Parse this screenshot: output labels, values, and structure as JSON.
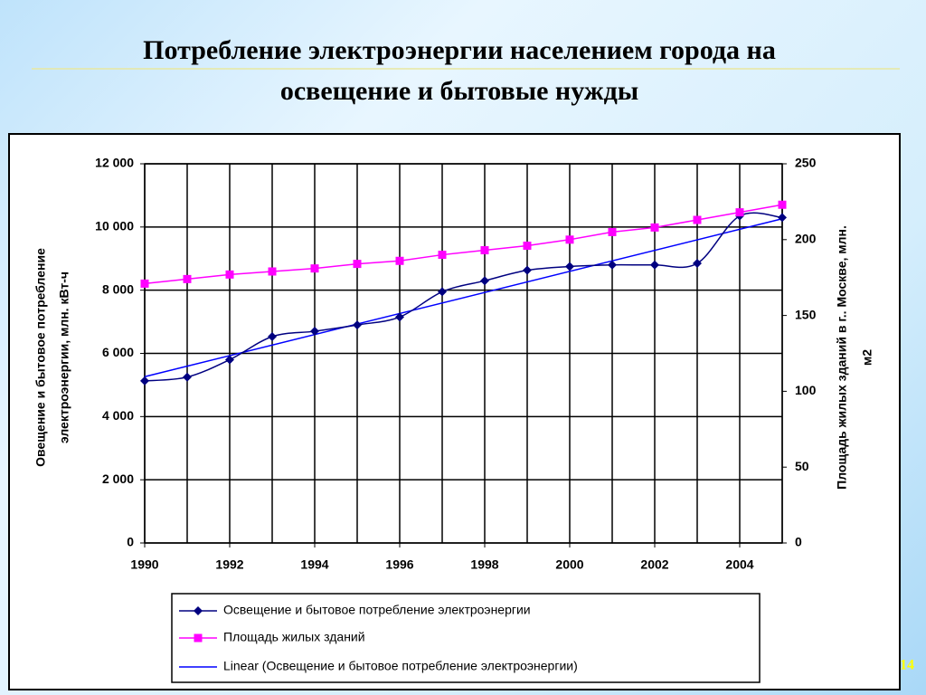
{
  "chart_data": {
    "type": "line",
    "title": [
      "Потребление электроэнергии населением города на",
      "освещение и бытовые нужды"
    ],
    "ylabel": [
      "Овещение и бытовое потребление",
      "электроэнергии, млн. кВт-ч"
    ],
    "y2label": [
      "Площадь жилых зданий в г.. Москве, млн.",
      "м2"
    ],
    "x": [
      1990,
      1991,
      1992,
      1993,
      1994,
      1995,
      1996,
      1997,
      1998,
      1999,
      2000,
      2001,
      2002,
      2003,
      2004,
      2005
    ],
    "xlim": [
      1990,
      2005
    ],
    "xticks": [
      1990,
      1992,
      1994,
      1996,
      1998,
      2000,
      2002,
      2004
    ],
    "ylim": [
      0,
      12000
    ],
    "yticks": [
      {
        "value": 0,
        "label": "0"
      },
      {
        "value": 2000,
        "label": "2 000"
      },
      {
        "value": 4000,
        "label": "4 000"
      },
      {
        "value": 6000,
        "label": "6 000"
      },
      {
        "value": 8000,
        "label": "8 000"
      },
      {
        "value": 10000,
        "label": "10 000"
      },
      {
        "value": 12000,
        "label": "12 000"
      }
    ],
    "y2lim": [
      0,
      250
    ],
    "y2ticks": [
      0,
      50,
      100,
      150,
      200,
      250
    ],
    "grid": true,
    "series": [
      {
        "name": "Освещение и бытовое потребление электроэнергии",
        "color": "#000080",
        "marker": "diamond",
        "values": [
          5130,
          5250,
          5800,
          6530,
          6700,
          6900,
          7150,
          7950,
          8300,
          8630,
          8750,
          8800,
          8800,
          8850,
          10350,
          10300
        ]
      },
      {
        "name": "Площадь жилых зданий",
        "color": "#ff00ff",
        "marker": "square",
        "axis": "y2",
        "values": [
          171,
          174,
          177,
          179,
          181,
          184,
          186,
          190,
          193,
          196,
          200,
          205,
          208,
          213,
          218,
          223
        ]
      }
    ],
    "trendline": {
      "name": "Linear (Освещение и бытовое потребление электроэнергии)",
      "color": "#0000ff",
      "of_series": 0
    },
    "page_number": "14"
  }
}
